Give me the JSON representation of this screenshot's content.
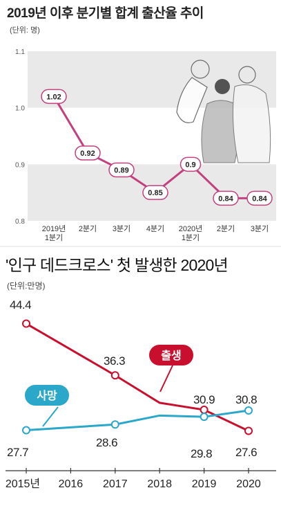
{
  "chart_data": [
    {
      "type": "line",
      "title": "2019년 이후 분기별 합계 출산율 추이",
      "unit": "(단위: 명)",
      "categories": [
        "2019년\n1분기",
        "2분기",
        "3분기",
        "4분기",
        "2020년\n1분기",
        "2분기",
        "3분기"
      ],
      "series": [
        {
          "values": [
            1.02,
            0.92,
            0.89,
            0.85,
            0.9,
            0.84,
            0.84
          ]
        }
      ],
      "data_labels": [
        "1.02",
        "0.92",
        "0.89",
        "0.85",
        "0.9",
        "0.84",
        "0.84"
      ],
      "yticks": [
        "1.1",
        "1.0",
        "0.9",
        "0.8"
      ],
      "ylim": [
        0.8,
        1.1
      ],
      "line_color": "#c2407e",
      "band_color": "#e9e9e9"
    },
    {
      "type": "line",
      "title": "'인구 데드크로스' 첫 발생한 2020년",
      "unit": "(단위:만명)",
      "categories": [
        "2015년",
        "2016",
        "2017",
        "2018",
        "2019",
        "2020"
      ],
      "series": [
        {
          "name": "출생",
          "color": "#c8102e",
          "x": [
            0,
            2,
            4,
            5
          ],
          "values": [
            44.4,
            36.3,
            30.9,
            27.6
          ],
          "labels": [
            "44.4",
            "36.3",
            "30.9",
            "27.6"
          ]
        },
        {
          "name": "사망",
          "color": "#2aa7c9",
          "x": [
            0,
            2,
            4,
            5
          ],
          "values": [
            27.7,
            28.6,
            29.8,
            30.8
          ],
          "labels": [
            "27.7",
            "28.6",
            "29.8",
            "30.8"
          ]
        }
      ],
      "extra_points": {
        "사망": [
          [
            3,
            30.0
          ]
        ],
        "출생": [
          [
            3,
            32.0
          ]
        ]
      }
    }
  ]
}
